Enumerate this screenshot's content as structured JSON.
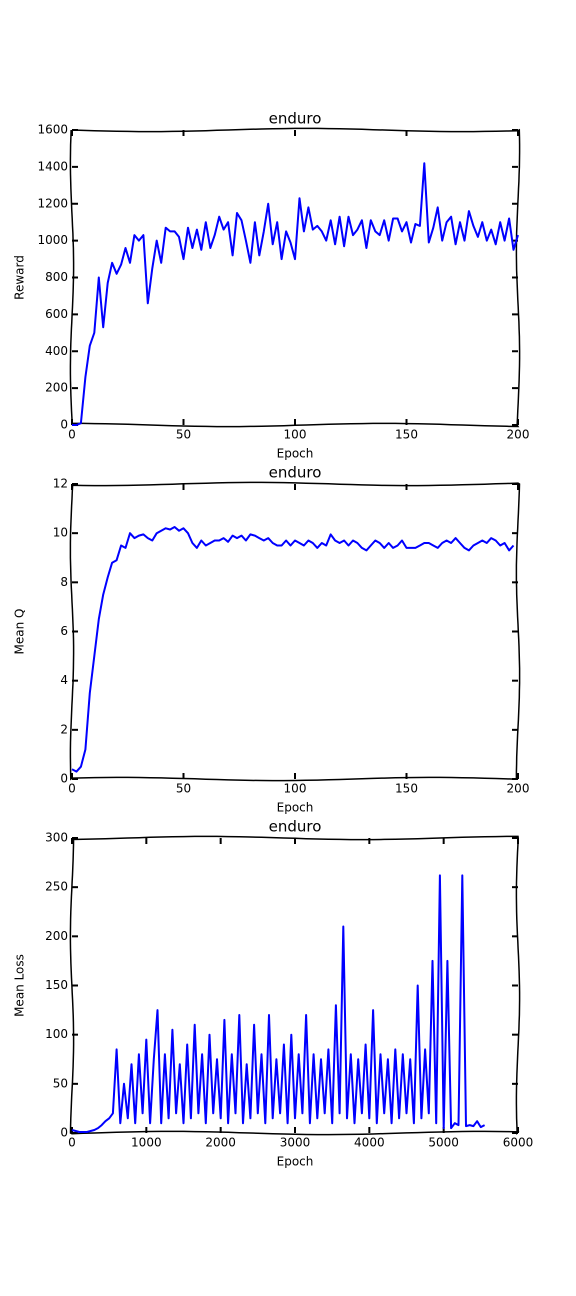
{
  "chart_data": [
    {
      "type": "line",
      "title": "enduro",
      "xlabel": "Epoch",
      "ylabel": "Reward",
      "color": "#0000ff",
      "xlim": [
        0,
        200
      ],
      "xticks": [
        0,
        50,
        100,
        150,
        200
      ],
      "ylim": [
        0,
        1600
      ],
      "yticks": [
        0,
        200,
        400,
        600,
        800,
        1000,
        1200,
        1400,
        1600
      ],
      "x": [
        0,
        2,
        4,
        6,
        8,
        10,
        12,
        14,
        16,
        18,
        20,
        22,
        24,
        26,
        28,
        30,
        32,
        34,
        36,
        38,
        40,
        42,
        44,
        46,
        48,
        50,
        52,
        54,
        56,
        58,
        60,
        62,
        64,
        66,
        68,
        70,
        72,
        74,
        76,
        78,
        80,
        82,
        84,
        86,
        88,
        90,
        92,
        94,
        96,
        98,
        100,
        102,
        104,
        106,
        108,
        110,
        112,
        114,
        116,
        118,
        120,
        122,
        124,
        126,
        128,
        130,
        132,
        134,
        136,
        138,
        140,
        142,
        144,
        146,
        148,
        150,
        152,
        154,
        156,
        158,
        160,
        162,
        164,
        166,
        168,
        170,
        172,
        174,
        176,
        178,
        180,
        182,
        184,
        186,
        188,
        190,
        192,
        194,
        196,
        198,
        200
      ],
      "values": [
        0,
        0,
        10,
        260,
        430,
        500,
        800,
        530,
        770,
        880,
        820,
        870,
        960,
        880,
        1030,
        1000,
        1030,
        660,
        850,
        1000,
        880,
        1070,
        1050,
        1050,
        1020,
        900,
        1070,
        960,
        1060,
        950,
        1100,
        960,
        1030,
        1130,
        1060,
        1100,
        920,
        1150,
        1110,
        1000,
        880,
        1100,
        920,
        1050,
        1200,
        980,
        1100,
        900,
        1050,
        990,
        900,
        1230,
        1050,
        1180,
        1060,
        1080,
        1050,
        1000,
        1110,
        980,
        1130,
        970,
        1130,
        1030,
        1060,
        1110,
        960,
        1110,
        1050,
        1030,
        1110,
        1000,
        1120,
        1120,
        1050,
        1100,
        990,
        1090,
        1080,
        1420,
        990,
        1070,
        1180,
        1000,
        1100,
        1130,
        980,
        1100,
        1000,
        1160,
        1080,
        1020,
        1100,
        1000,
        1060,
        980,
        1100,
        1000,
        1120,
        950,
        1030
      ]
    },
    {
      "type": "line",
      "title": "enduro",
      "xlabel": "Epoch",
      "ylabel": "Mean Q",
      "color": "#0000ff",
      "xlim": [
        0,
        200
      ],
      "xticks": [
        0,
        50,
        100,
        150,
        200
      ],
      "ylim": [
        0,
        12
      ],
      "yticks": [
        0,
        2,
        4,
        6,
        8,
        10,
        12
      ],
      "x": [
        0,
        2,
        4,
        6,
        8,
        10,
        12,
        14,
        16,
        18,
        20,
        22,
        24,
        26,
        28,
        30,
        32,
        34,
        36,
        38,
        40,
        42,
        44,
        46,
        48,
        50,
        52,
        54,
        56,
        58,
        60,
        62,
        64,
        66,
        68,
        70,
        72,
        74,
        76,
        78,
        80,
        82,
        84,
        86,
        88,
        90,
        92,
        94,
        96,
        98,
        100,
        102,
        104,
        106,
        108,
        110,
        112,
        114,
        116,
        118,
        120,
        122,
        124,
        126,
        128,
        130,
        132,
        134,
        136,
        138,
        140,
        142,
        144,
        146,
        148,
        150,
        152,
        154,
        156,
        158,
        160,
        162,
        164,
        166,
        168,
        170,
        172,
        174,
        176,
        178,
        180,
        182,
        184,
        186,
        188,
        190,
        192,
        194,
        196,
        198
      ],
      "values": [
        0.4,
        0.3,
        0.5,
        1.2,
        3.5,
        5,
        6.5,
        7.5,
        8.2,
        8.8,
        8.9,
        9.5,
        9.4,
        10,
        9.8,
        9.9,
        9.95,
        9.8,
        9.7,
        10,
        10.1,
        10.2,
        10.15,
        10.25,
        10.1,
        10.2,
        10,
        9.6,
        9.4,
        9.7,
        9.5,
        9.6,
        9.7,
        9.7,
        9.8,
        9.65,
        9.9,
        9.8,
        9.9,
        9.7,
        9.95,
        9.9,
        9.8,
        9.7,
        9.8,
        9.6,
        9.5,
        9.5,
        9.7,
        9.5,
        9.7,
        9.6,
        9.5,
        9.7,
        9.6,
        9.4,
        9.6,
        9.5,
        9.95,
        9.7,
        9.6,
        9.7,
        9.5,
        9.7,
        9.6,
        9.4,
        9.3,
        9.5,
        9.7,
        9.6,
        9.4,
        9.6,
        9.4,
        9.5,
        9.7,
        9.4,
        9.4,
        9.4,
        9.5,
        9.6,
        9.6,
        9.5,
        9.4,
        9.6,
        9.7,
        9.6,
        9.8,
        9.6,
        9.4,
        9.3,
        9.5,
        9.6,
        9.7,
        9.6,
        9.8,
        9.7,
        9.5,
        9.6,
        9.3,
        9.5
      ]
    },
    {
      "type": "line",
      "title": "enduro",
      "xlabel": "Epoch",
      "ylabel": "Mean Loss",
      "color": "#0000ff",
      "xlim": [
        0,
        6000
      ],
      "xticks": [
        0,
        1000,
        2000,
        3000,
        4000,
        5000,
        6000
      ],
      "ylim": [
        0,
        300
      ],
      "yticks": [
        0,
        50,
        100,
        150,
        200,
        250,
        300
      ],
      "x": [
        0,
        50,
        100,
        150,
        200,
        250,
        300,
        350,
        400,
        450,
        500,
        550,
        600,
        650,
        700,
        750,
        800,
        850,
        900,
        950,
        1000,
        1050,
        1100,
        1150,
        1200,
        1250,
        1300,
        1350,
        1400,
        1450,
        1500,
        1550,
        1600,
        1650,
        1700,
        1750,
        1800,
        1850,
        1900,
        1950,
        2000,
        2050,
        2100,
        2150,
        2200,
        2250,
        2300,
        2350,
        2400,
        2450,
        2500,
        2550,
        2600,
        2650,
        2700,
        2750,
        2800,
        2850,
        2900,
        2950,
        3000,
        3050,
        3100,
        3150,
        3200,
        3250,
        3300,
        3350,
        3400,
        3450,
        3500,
        3550,
        3600,
        3650,
        3700,
        3750,
        3800,
        3850,
        3900,
        3950,
        4000,
        4050,
        4100,
        4150,
        4200,
        4250,
        4300,
        4350,
        4400,
        4450,
        4500,
        4550,
        4600,
        4650,
        4700,
        4750,
        4800,
        4850,
        4900,
        4950,
        5000,
        5050,
        5100,
        5150,
        5200,
        5250,
        5300,
        5350,
        5400,
        5450,
        5500,
        5550
      ],
      "values": [
        3,
        2,
        1,
        1,
        1,
        2,
        3,
        5,
        8,
        12,
        15,
        20,
        85,
        10,
        50,
        15,
        70,
        10,
        80,
        20,
        95,
        10,
        75,
        125,
        10,
        80,
        15,
        105,
        20,
        70,
        10,
        90,
        15,
        110,
        20,
        80,
        10,
        100,
        20,
        75,
        15,
        115,
        10,
        80,
        20,
        120,
        10,
        70,
        15,
        110,
        20,
        80,
        10,
        120,
        15,
        75,
        20,
        90,
        10,
        100,
        15,
        80,
        20,
        120,
        10,
        80,
        15,
        75,
        20,
        85,
        10,
        130,
        20,
        210,
        15,
        80,
        10,
        75,
        20,
        90,
        15,
        125,
        10,
        80,
        20,
        75,
        10,
        85,
        15,
        80,
        20,
        75,
        10,
        150,
        15,
        85,
        20,
        175,
        10,
        262,
        5,
        175,
        5,
        10,
        8,
        262,
        7,
        8,
        7,
        12,
        6,
        8
      ]
    }
  ]
}
